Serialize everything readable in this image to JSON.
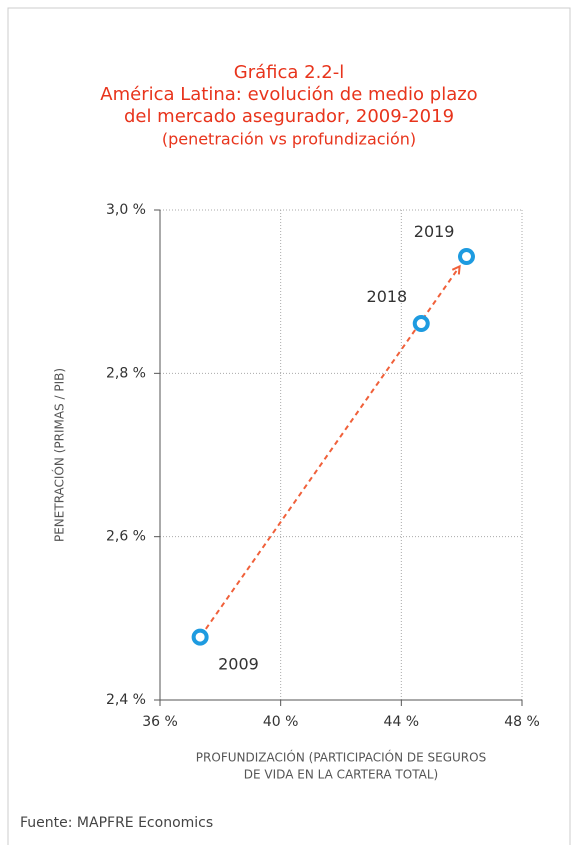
{
  "chart_data": {
    "type": "scatter",
    "title": [
      "Gráfica 2.2-l",
      "América Latina: evolución de medio plazo",
      "del mercado asegurador, 2009-2019"
    ],
    "subtitle": "(penetración vs profundización)",
    "x_label": [
      "PROFUNDIZACIÓN (PARTICIPACIÓN DE SEGUROS",
      "DE VIDA EN LA CARTERA TOTAL)"
    ],
    "y_label": "PENETRACIÓN (PRIMAS / PIB)",
    "labels": [
      "2009",
      "2018",
      "2019"
    ],
    "x": [
      37.33,
      44.66,
      46.16
    ],
    "y": [
      2.477,
      2.861,
      2.943
    ],
    "color": "#1e9be0",
    "arrow_color": "#f0603a",
    "xlim": [
      36,
      48
    ],
    "xticks": [
      {
        "value": 36,
        "label": "36 %"
      },
      {
        "value": 40,
        "label": "40 %"
      },
      {
        "value": 44,
        "label": "44 %"
      },
      {
        "value": 48,
        "label": "48 %"
      }
    ],
    "ylim": [
      2.4,
      3.0
    ],
    "yticks": [
      {
        "value": 2.4,
        "label": "2,4 %"
      },
      {
        "value": 2.6,
        "label": "2,6 %"
      },
      {
        "value": 2.8,
        "label": "2,8 %"
      },
      {
        "value": 3.0,
        "label": "3,0 %"
      }
    ],
    "grid": true,
    "source": "Fuente: MAPFRE Economics"
  }
}
